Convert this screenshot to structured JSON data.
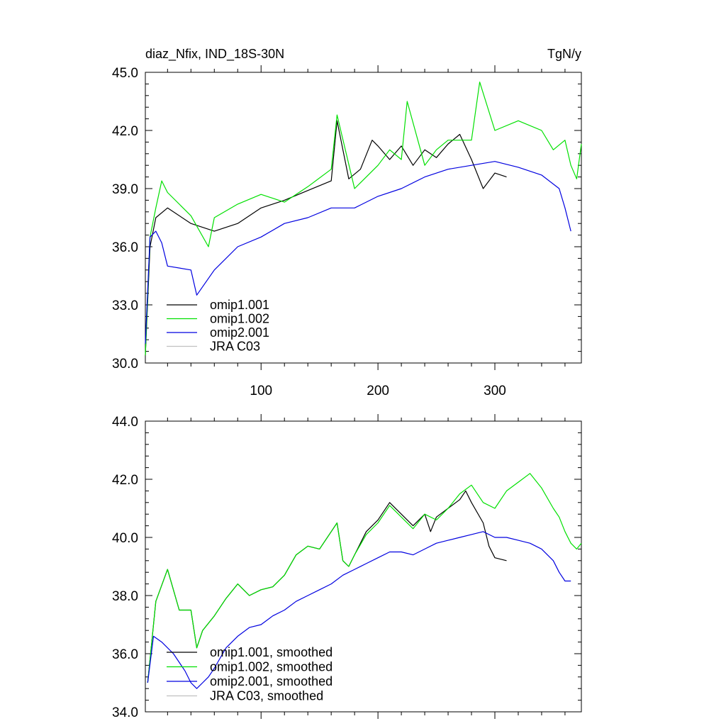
{
  "chart_data": [
    {
      "type": "line",
      "title_left": "diaz_Nfix, IND_18S-30N",
      "title_right": "TgN/y",
      "xlabel": "",
      "ylabel": "",
      "xlim": [
        1,
        374
      ],
      "ylim": [
        30,
        45
      ],
      "y_ticks": [
        30,
        33,
        36,
        39,
        42,
        45
      ],
      "y_tick_labels": [
        "30.0",
        "33.0",
        "36.0",
        "39.0",
        "42.0",
        "45.0"
      ],
      "x_ticks": [
        100,
        200,
        300
      ],
      "x_tick_labels": [
        "100",
        "200",
        "300"
      ],
      "legend": [
        "omip1.001",
        "omip1.002",
        "omip2.001",
        "JRA C03"
      ],
      "legend_position": "bottom-left",
      "series": [
        {
          "name": "omip1.001",
          "color": "#000000",
          "x": [
            1,
            5,
            10,
            20,
            40,
            60,
            80,
            100,
            120,
            140,
            160,
            165,
            175,
            185,
            195,
            200,
            210,
            220,
            230,
            240,
            250,
            260,
            270,
            280,
            290,
            300,
            310
          ],
          "y": [
            30.4,
            36.0,
            37.5,
            38.0,
            37.2,
            36.8,
            37.2,
            38.0,
            38.4,
            38.9,
            39.4,
            42.5,
            39.5,
            40.0,
            41.5,
            41.2,
            40.5,
            41.2,
            40.2,
            41.0,
            40.6,
            41.3,
            41.8,
            40.5,
            39.0,
            39.8,
            39.6
          ]
        },
        {
          "name": "omip1.002",
          "color": "#00e000",
          "x": [
            1,
            5,
            10,
            15,
            20,
            40,
            55,
            60,
            80,
            100,
            120,
            140,
            160,
            165,
            180,
            200,
            210,
            220,
            225,
            240,
            250,
            260,
            280,
            287,
            300,
            320,
            340,
            350,
            360,
            365,
            370,
            374
          ],
          "y": [
            30.4,
            36.5,
            38.0,
            39.4,
            38.8,
            37.6,
            36.0,
            37.5,
            38.2,
            38.7,
            38.3,
            39.1,
            40.0,
            42.8,
            39.0,
            40.2,
            41.0,
            40.5,
            43.5,
            40.2,
            41.0,
            41.5,
            41.5,
            44.5,
            42.0,
            42.5,
            42.0,
            41.0,
            41.5,
            40.2,
            39.5,
            41.3
          ]
        },
        {
          "name": "omip2.001",
          "color": "#0000e0",
          "x": [
            1,
            5,
            10,
            15,
            20,
            40,
            45,
            60,
            80,
            100,
            120,
            140,
            160,
            180,
            200,
            220,
            240,
            260,
            280,
            300,
            320,
            340,
            355,
            360,
            365
          ],
          "y": [
            31.0,
            36.5,
            36.8,
            36.2,
            35.0,
            34.8,
            33.5,
            34.8,
            36.0,
            36.5,
            37.2,
            37.5,
            38.0,
            38.0,
            38.6,
            39.0,
            39.6,
            40.0,
            40.2,
            40.4,
            40.1,
            39.7,
            39.0,
            38.0,
            36.8
          ]
        },
        {
          "name": "JRA C03",
          "color": "#c0c0c0",
          "x": [],
          "y": []
        }
      ]
    },
    {
      "type": "line",
      "xlabel": "",
      "ylabel": "",
      "xlim": [
        1,
        374
      ],
      "ylim": [
        34,
        44
      ],
      "y_ticks": [
        34,
        36,
        38,
        40,
        42,
        44
      ],
      "y_tick_labels": [
        "34.0",
        "36.0",
        "38.0",
        "40.0",
        "42.0",
        "44.0"
      ],
      "x_ticks": [
        100,
        200,
        300
      ],
      "legend": [
        "omip1.001, smoothed",
        "omip1.002, smoothed",
        "omip2.001, smoothed",
        "JRA C03, smoothed"
      ],
      "legend_position": "bottom-left",
      "series": [
        {
          "name": "omip1.001, smoothed",
          "color": "#000000",
          "x": [
            3,
            10,
            20,
            30,
            40,
            45,
            50,
            60,
            70,
            80,
            90,
            100,
            110,
            120,
            130,
            140,
            150,
            160,
            165,
            170,
            175,
            180,
            190,
            200,
            210,
            220,
            230,
            240,
            245,
            250,
            260,
            270,
            275,
            280,
            290,
            295,
            300,
            310
          ],
          "y": [
            35.0,
            37.8,
            38.9,
            37.5,
            37.5,
            36.2,
            36.8,
            37.3,
            37.9,
            38.4,
            38.0,
            38.2,
            38.3,
            38.7,
            39.4,
            39.7,
            39.6,
            40.2,
            40.5,
            39.2,
            39.0,
            39.4,
            40.2,
            40.6,
            41.2,
            40.8,
            40.4,
            40.8,
            40.2,
            40.7,
            41.0,
            41.3,
            41.6,
            41.2,
            40.5,
            39.7,
            39.3,
            39.2
          ]
        },
        {
          "name": "omip1.002, smoothed",
          "color": "#00e000",
          "x": [
            3,
            10,
            20,
            30,
            40,
            45,
            50,
            60,
            70,
            80,
            90,
            100,
            110,
            120,
            130,
            140,
            150,
            160,
            165,
            170,
            175,
            180,
            190,
            200,
            210,
            220,
            230,
            240,
            250,
            260,
            270,
            280,
            290,
            300,
            310,
            320,
            330,
            340,
            350,
            355,
            360,
            365,
            370,
            374
          ],
          "y": [
            35.0,
            37.8,
            38.9,
            37.5,
            37.5,
            36.2,
            36.8,
            37.3,
            37.9,
            38.4,
            38.0,
            38.2,
            38.3,
            38.7,
            39.4,
            39.7,
            39.6,
            40.2,
            40.5,
            39.2,
            39.0,
            39.4,
            40.1,
            40.5,
            41.1,
            40.7,
            40.3,
            40.8,
            40.6,
            41.0,
            41.5,
            41.8,
            41.2,
            41.0,
            41.6,
            41.9,
            42.2,
            41.7,
            41.0,
            40.7,
            40.2,
            39.8,
            39.6,
            39.8
          ]
        },
        {
          "name": "omip2.001, smoothed",
          "color": "#0000e0",
          "x": [
            3,
            8,
            15,
            25,
            35,
            40,
            45,
            50,
            55,
            60,
            70,
            80,
            90,
            100,
            110,
            120,
            130,
            140,
            150,
            160,
            170,
            180,
            190,
            200,
            210,
            220,
            230,
            240,
            250,
            260,
            270,
            280,
            290,
            300,
            310,
            320,
            330,
            340,
            350,
            355,
            360,
            365
          ],
          "y": [
            35.0,
            36.6,
            36.4,
            36.0,
            35.4,
            35.0,
            34.8,
            35.0,
            35.2,
            35.5,
            36.2,
            36.6,
            36.9,
            37.0,
            37.3,
            37.5,
            37.8,
            38.0,
            38.2,
            38.4,
            38.7,
            38.9,
            39.1,
            39.3,
            39.5,
            39.5,
            39.4,
            39.6,
            39.8,
            39.9,
            40.0,
            40.1,
            40.2,
            40.0,
            40.0,
            39.9,
            39.8,
            39.6,
            39.2,
            38.8,
            38.5,
            38.5
          ]
        },
        {
          "name": "JRA C03, smoothed",
          "color": "#c0c0c0",
          "x": [],
          "y": []
        }
      ]
    }
  ]
}
